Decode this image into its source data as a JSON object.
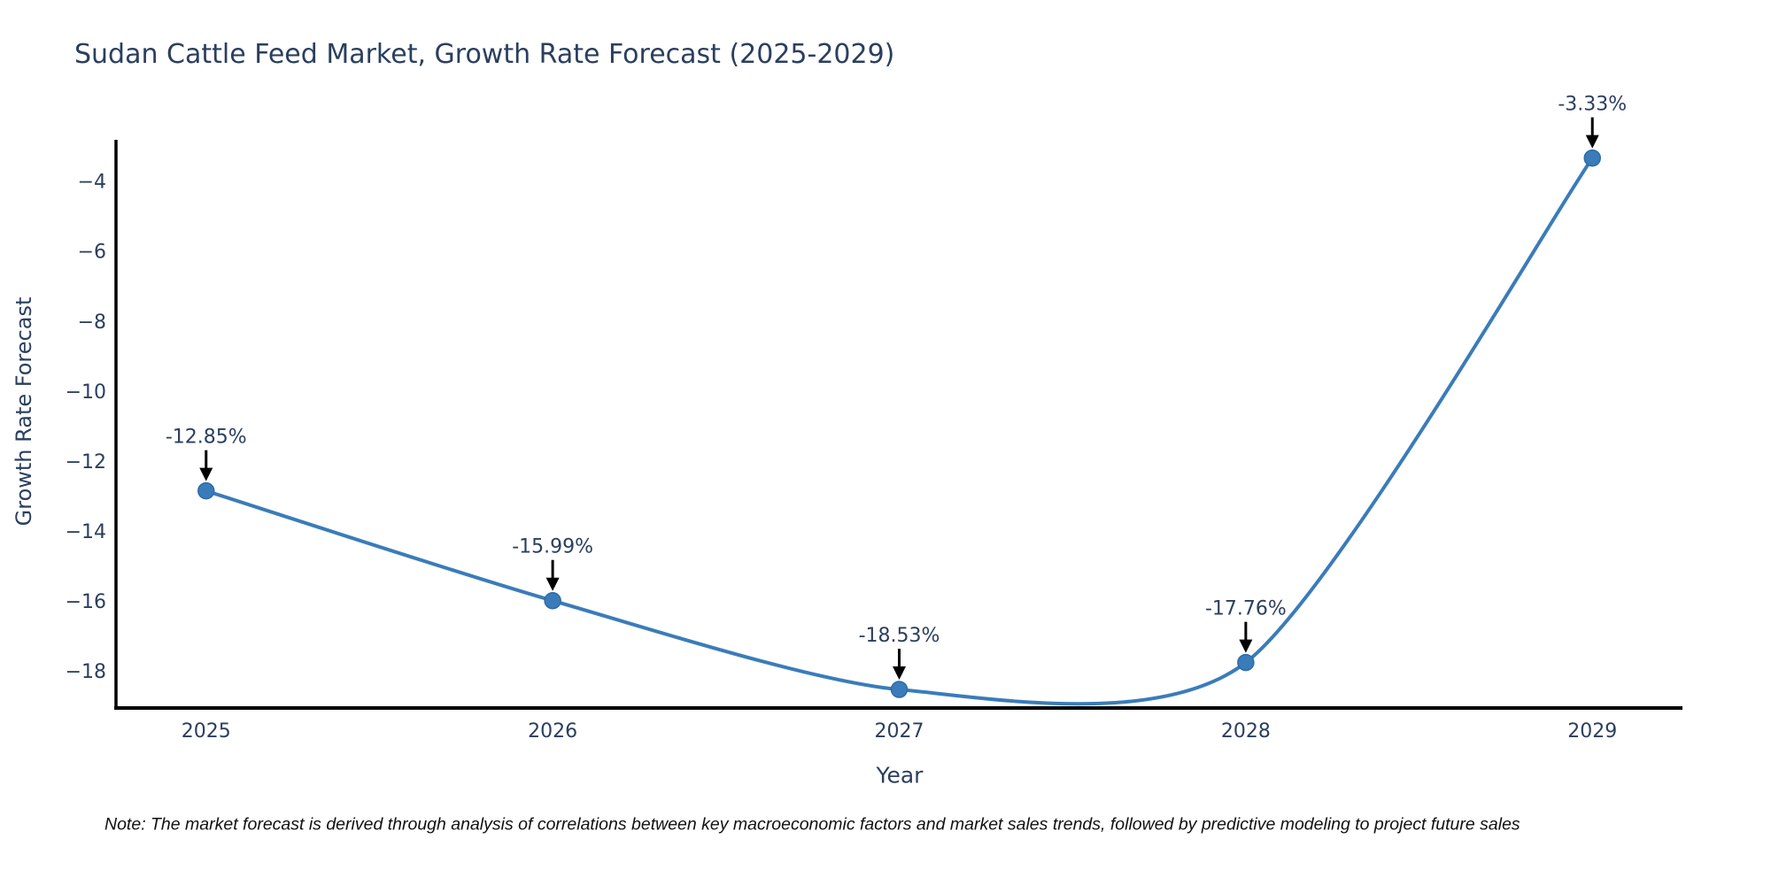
{
  "chart_data": {
    "type": "line",
    "line_shape": "spline",
    "x": [
      2025,
      2026,
      2027,
      2028,
      2029
    ],
    "y": [
      -12.85,
      -15.99,
      -18.53,
      -17.76,
      -3.33
    ],
    "point_labels": [
      "-12.85%",
      "-15.99%",
      "-18.53%",
      "-17.76%",
      "-3.33%"
    ],
    "title": "Sudan Cattle Feed Market, Growth Rate Forecast (2025-2029)",
    "xlabel": "Year",
    "ylabel": "Growth Rate Forecast",
    "xticks": [
      2025,
      2026,
      2027,
      2028,
      2029
    ],
    "yticks": [
      -18,
      -16,
      -14,
      -12,
      -10,
      -8,
      -6,
      -4
    ],
    "xlim": [
      2024.74,
      2029.26
    ],
    "ylim": [
      -19.06,
      -2.86
    ],
    "grid": false,
    "legend": false,
    "markers": true,
    "colors": {
      "line": "#3a7cb9",
      "marker": "#3a7cb9",
      "marker_edge": "#2f6ba6",
      "axis_line": "#000000",
      "tick_text": "#2a3f5f",
      "title_text": "#2a3f5f",
      "axis_title_text": "#2a3f5f",
      "annotation_text": "#2a3f5f",
      "annotation_arrow": "#000000",
      "note_text": "#111111",
      "background": "#ffffff"
    }
  },
  "footnote": {
    "text": "Note: The market forecast is derived through analysis of correlations between key macroeconomic factors and market sales trends, followed by predictive modeling to project future sales"
  }
}
